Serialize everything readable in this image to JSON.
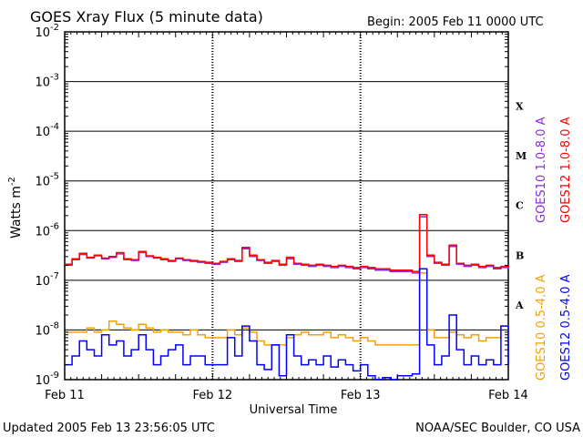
{
  "chart_data": {
    "type": "line",
    "title": "GOES Xray Flux (5 minute data)",
    "begin_label": "Begin:  2005 Feb 11 0000 UTC",
    "xlabel": "Universal Time",
    "ylabel": "Watts m",
    "ylabel_exponent": "-2",
    "y_scale": "log",
    "ylim": [
      1e-09,
      0.01
    ],
    "y_ticks": [
      {
        "base": "10",
        "exp": "-2",
        "value": 0.01
      },
      {
        "base": "10",
        "exp": "-3",
        "value": 0.001
      },
      {
        "base": "10",
        "exp": "-4",
        "value": 0.0001
      },
      {
        "base": "10",
        "exp": "-5",
        "value": 1e-05
      },
      {
        "base": "10",
        "exp": "-6",
        "value": 1e-06
      },
      {
        "base": "10",
        "exp": "-7",
        "value": 1e-07
      },
      {
        "base": "10",
        "exp": "-8",
        "value": 1e-08
      },
      {
        "base": "10",
        "exp": "-9",
        "value": 1e-09
      }
    ],
    "xlim_days": [
      0,
      3
    ],
    "x_ticks": [
      {
        "label": "Feb 11",
        "day": 0
      },
      {
        "label": "Feb 12",
        "day": 1
      },
      {
        "label": "Feb 13",
        "day": 2
      },
      {
        "label": "Feb 14",
        "day": 3
      }
    ],
    "flare_classes": [
      {
        "label": "X",
        "value": 0.00032
      },
      {
        "label": "M",
        "value": 3.2e-05
      },
      {
        "label": "C",
        "value": 3.2e-06
      },
      {
        "label": "B",
        "value": 3.2e-07
      },
      {
        "label": "A",
        "value": 3.2e-08
      }
    ],
    "grid": true,
    "series": [
      {
        "name": "GOES10 1.0-8.0 A",
        "color": "#8a2be2",
        "x": [
          0,
          0.05,
          0.1,
          0.15,
          0.2,
          0.25,
          0.3,
          0.35,
          0.4,
          0.45,
          0.5,
          0.55,
          0.6,
          0.65,
          0.7,
          0.75,
          0.8,
          0.85,
          0.9,
          0.95,
          1.0,
          1.05,
          1.1,
          1.15,
          1.2,
          1.25,
          1.3,
          1.35,
          1.4,
          1.45,
          1.5,
          1.55,
          1.6,
          1.65,
          1.7,
          1.75,
          1.8,
          1.85,
          1.9,
          1.95,
          2.0,
          2.05,
          2.1,
          2.15,
          2.2,
          2.25,
          2.3,
          2.35,
          2.4,
          2.45,
          2.5,
          2.55,
          2.6,
          2.65,
          2.7,
          2.75,
          2.8,
          2.85,
          2.9,
          2.95,
          3.0
        ],
        "values": [
          2e-07,
          2.6e-07,
          3.3e-07,
          2.8e-07,
          3.1e-07,
          2.7e-07,
          2.9e-07,
          3.4e-07,
          2.6e-07,
          2.5e-07,
          3.6e-07,
          3e-07,
          2.8e-07,
          2.6e-07,
          2.4e-07,
          2.7e-07,
          2.5e-07,
          2.4e-07,
          2.3e-07,
          2.2e-07,
          2.1e-07,
          2.3e-07,
          2.6e-07,
          2.4e-07,
          4.3e-07,
          3e-07,
          2.5e-07,
          2.2e-07,
          2.4e-07,
          2e-07,
          2.7e-07,
          2.1e-07,
          2e-07,
          1.9e-07,
          2e-07,
          1.9e-07,
          1.8e-07,
          1.9e-07,
          1.8e-07,
          1.7e-07,
          1.8e-07,
          1.7e-07,
          1.6e-07,
          1.6e-07,
          1.5e-07,
          1.5e-07,
          1.5e-07,
          1.4e-07,
          1.9e-06,
          3e-07,
          2.2e-07,
          2e-07,
          4.8e-07,
          2.1e-07,
          1.9e-07,
          2e-07,
          1.8e-07,
          1.9e-07,
          1.7e-07,
          1.8e-07,
          1.7e-07
        ]
      },
      {
        "name": "GOES12 1.0-8.0 A",
        "color": "#ff0000",
        "x": [
          0,
          0.05,
          0.1,
          0.15,
          0.2,
          0.25,
          0.3,
          0.35,
          0.4,
          0.45,
          0.5,
          0.55,
          0.6,
          0.65,
          0.7,
          0.75,
          0.8,
          0.85,
          0.9,
          0.95,
          1.0,
          1.05,
          1.1,
          1.15,
          1.2,
          1.25,
          1.3,
          1.35,
          1.4,
          1.45,
          1.5,
          1.55,
          1.6,
          1.65,
          1.7,
          1.75,
          1.8,
          1.85,
          1.9,
          1.95,
          2.0,
          2.05,
          2.1,
          2.15,
          2.2,
          2.25,
          2.3,
          2.35,
          2.4,
          2.45,
          2.5,
          2.55,
          2.6,
          2.65,
          2.7,
          2.75,
          2.8,
          2.85,
          2.9,
          2.95,
          3.0
        ],
        "values": [
          2.1e-07,
          2.7e-07,
          3.5e-07,
          2.9e-07,
          3.2e-07,
          2.8e-07,
          3e-07,
          3.6e-07,
          2.7e-07,
          2.6e-07,
          3.8e-07,
          3.1e-07,
          2.9e-07,
          2.7e-07,
          2.5e-07,
          2.8e-07,
          2.6e-07,
          2.5e-07,
          2.4e-07,
          2.3e-07,
          2.2e-07,
          2.4e-07,
          2.7e-07,
          2.5e-07,
          4.6e-07,
          3.2e-07,
          2.6e-07,
          2.3e-07,
          2.5e-07,
          2.1e-07,
          2.9e-07,
          2.2e-07,
          2.1e-07,
          2e-07,
          2.1e-07,
          2e-07,
          1.9e-07,
          2e-07,
          1.9e-07,
          1.8e-07,
          1.9e-07,
          1.8e-07,
          1.7e-07,
          1.7e-07,
          1.6e-07,
          1.6e-07,
          1.6e-07,
          1.5e-07,
          2.1e-06,
          3.2e-07,
          2.3e-07,
          2.1e-07,
          5.1e-07,
          2.2e-07,
          2e-07,
          2.1e-07,
          1.9e-07,
          2e-07,
          1.8e-07,
          1.9e-07,
          1.8e-07
        ]
      },
      {
        "name": "GOES10 0.5-4.0 A",
        "color": "#f5a000",
        "x": [
          0,
          0.05,
          0.1,
          0.15,
          0.2,
          0.25,
          0.3,
          0.35,
          0.4,
          0.45,
          0.5,
          0.55,
          0.6,
          0.65,
          0.7,
          0.75,
          0.8,
          0.85,
          0.9,
          0.95,
          1.0,
          1.05,
          1.1,
          1.15,
          1.2,
          1.25,
          1.3,
          1.35,
          1.4,
          1.45,
          1.5,
          1.55,
          1.6,
          1.65,
          1.7,
          1.75,
          1.8,
          1.85,
          1.9,
          1.95,
          2.0,
          2.05,
          2.1,
          2.15,
          2.2,
          2.25,
          2.3,
          2.35,
          2.4,
          2.45,
          2.5,
          2.55,
          2.6,
          2.65,
          2.7,
          2.75,
          2.8,
          2.85,
          2.9,
          2.95,
          3.0
        ],
        "values": [
          9e-09,
          9e-09,
          9e-09,
          1.1e-08,
          9e-09,
          1e-08,
          1.5e-08,
          1.3e-08,
          1.1e-08,
          1e-08,
          1.3e-08,
          1.1e-08,
          9e-09,
          1e-08,
          9e-09,
          9e-09,
          8e-09,
          1e-08,
          8e-09,
          7e-09,
          7e-09,
          7e-09,
          1e-08,
          8e-09,
          1.1e-08,
          9e-09,
          6e-09,
          5e-09,
          5e-09,
          5e-09,
          7e-09,
          8e-09,
          9e-09,
          8e-09,
          8e-09,
          9e-09,
          7e-09,
          8e-09,
          7e-09,
          6e-09,
          7e-09,
          6e-09,
          5e-09,
          5e-09,
          5e-09,
          5e-09,
          5e-09,
          5e-09,
          1.4e-07,
          1e-08,
          7e-09,
          7e-09,
          9e-09,
          8e-09,
          7e-09,
          8e-09,
          6e-09,
          7e-09,
          7e-09,
          1.2e-08,
          7e-09
        ]
      },
      {
        "name": "GOES12 0.5-4.0 A",
        "color": "#0000ff",
        "x": [
          0,
          0.05,
          0.1,
          0.15,
          0.2,
          0.25,
          0.3,
          0.35,
          0.4,
          0.45,
          0.5,
          0.55,
          0.6,
          0.65,
          0.7,
          0.75,
          0.8,
          0.85,
          0.9,
          0.95,
          1.0,
          1.05,
          1.1,
          1.15,
          1.2,
          1.25,
          1.3,
          1.35,
          1.4,
          1.45,
          1.5,
          1.55,
          1.6,
          1.65,
          1.7,
          1.75,
          1.8,
          1.85,
          1.9,
          1.95,
          2.0,
          2.05,
          2.1,
          2.15,
          2.2,
          2.25,
          2.3,
          2.35,
          2.4,
          2.45,
          2.5,
          2.55,
          2.6,
          2.65,
          2.7,
          2.75,
          2.8,
          2.85,
          2.9,
          2.95,
          3.0
        ],
        "values": [
          2e-09,
          3e-09,
          6e-09,
          4e-09,
          3e-09,
          8e-09,
          5e-09,
          6e-09,
          3e-09,
          4e-09,
          8e-09,
          4e-09,
          2e-09,
          3e-09,
          4e-09,
          5e-09,
          2e-09,
          3e-09,
          3e-09,
          2e-09,
          2e-09,
          2e-09,
          7e-09,
          3e-09,
          1.2e-08,
          6e-09,
          2e-09,
          1.6e-09,
          5e-09,
          1.2e-09,
          8e-09,
          3e-09,
          2e-09,
          2.5e-09,
          2e-09,
          3e-09,
          1.8e-09,
          2.5e-09,
          2e-09,
          1.5e-09,
          2e-09,
          1.2e-09,
          1e-09,
          1.1e-09,
          1e-09,
          1.2e-09,
          1.2e-09,
          1.3e-09,
          1.7e-07,
          5e-09,
          2e-09,
          3e-09,
          2e-08,
          4e-09,
          2e-09,
          3e-09,
          2e-09,
          2.5e-09,
          2e-09,
          1.2e-08,
          2e-09
        ]
      }
    ]
  },
  "footer": {
    "updated": "Updated 2005 Feb 13 23:56:05 UTC",
    "source": "NOAA/SEC Boulder, CO USA"
  }
}
